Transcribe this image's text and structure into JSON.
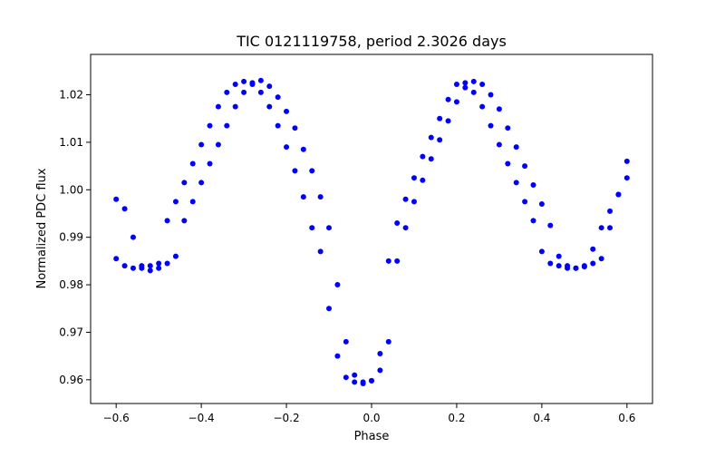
{
  "chart_data": {
    "type": "scatter",
    "title": "TIC 0121119758, period 2.3026 days",
    "xlabel": "Phase",
    "ylabel": "Normalized PDC flux",
    "xlim": [
      -0.66,
      0.66
    ],
    "ylim": [
      0.955,
      1.0285
    ],
    "xticks": [
      -0.6,
      -0.4,
      -0.2,
      0.0,
      0.2,
      0.4,
      0.6
    ],
    "xtick_labels": [
      "−0.6",
      "−0.4",
      "−0.2",
      "0.0",
      "0.2",
      "0.4",
      "0.6"
    ],
    "yticks": [
      0.96,
      0.97,
      0.98,
      0.99,
      1.0,
      1.01,
      1.02
    ],
    "ytick_labels": [
      "0.96",
      "0.97",
      "0.98",
      "0.99",
      "1.00",
      "1.01",
      "1.02"
    ],
    "grid": false,
    "marker_color": "#0000ff",
    "series": [
      {
        "x": [
          -0.6,
          -0.58,
          -0.56,
          -0.54,
          -0.52,
          -0.5,
          -0.48,
          -0.46,
          -0.44,
          -0.42,
          -0.4,
          -0.38,
          -0.36,
          -0.34,
          -0.32,
          -0.3,
          -0.28,
          -0.26,
          -0.24,
          -0.22,
          -0.2,
          -0.18,
          -0.16,
          -0.14,
          -0.12,
          -0.1,
          -0.08,
          -0.06,
          -0.04,
          -0.02,
          0.0,
          0.02,
          0.04,
          0.06,
          0.08,
          0.1,
          0.12,
          0.14,
          0.16,
          0.18,
          0.2,
          0.22,
          0.24,
          0.26,
          0.28,
          0.3,
          0.32,
          0.34,
          0.36,
          0.38,
          0.4,
          0.42,
          0.44,
          0.46,
          0.48,
          0.5,
          0.52,
          0.54,
          0.56,
          0.58,
          0.6
        ],
        "y": [
          0.9855,
          0.984,
          0.9835,
          0.9835,
          0.984,
          0.9845,
          0.9935,
          0.9975,
          1.0015,
          1.0055,
          1.0095,
          1.0135,
          1.0175,
          1.0205,
          1.0222,
          1.0228,
          1.0222,
          1.0205,
          1.0175,
          1.0135,
          1.009,
          1.004,
          0.9985,
          0.992,
          0.987,
          0.975,
          0.965,
          0.9605,
          0.9595,
          0.9592,
          0.9598,
          0.9655,
          0.985,
          0.993,
          0.998,
          1.0025,
          1.007,
          1.011,
          1.015,
          1.019,
          1.0222,
          1.0225,
          1.0205,
          1.0175,
          1.0135,
          1.0095,
          1.0055,
          1.0015,
          0.9975,
          0.9935,
          0.987,
          0.9845,
          0.984,
          0.9835,
          0.9835,
          0.984,
          0.9875,
          0.992,
          0.9955,
          0.999,
          1.0025
        ]
      },
      {
        "x": [
          -0.6,
          -0.58,
          -0.56,
          -0.54,
          -0.52,
          -0.5,
          -0.48,
          -0.46,
          -0.44,
          -0.42,
          -0.4,
          -0.38,
          -0.36,
          -0.34,
          -0.32,
          -0.3,
          -0.28,
          -0.26,
          -0.24,
          -0.22,
          -0.2,
          -0.18,
          -0.16,
          -0.14,
          -0.12,
          -0.1,
          -0.08,
          -0.06,
          -0.04,
          -0.02,
          0.0,
          0.02,
          0.04,
          0.06,
          0.08,
          0.1,
          0.12,
          0.14,
          0.16,
          0.18,
          0.2,
          0.22,
          0.24,
          0.26,
          0.28,
          0.3,
          0.32,
          0.34,
          0.36,
          0.38,
          0.4,
          0.42,
          0.44,
          0.46,
          0.48,
          0.5,
          0.52,
          0.54,
          0.56,
          0.58,
          0.6
        ],
        "y": [
          0.998,
          0.996,
          0.99,
          0.984,
          0.983,
          0.9835,
          0.9845,
          0.986,
          0.9935,
          0.9975,
          1.0015,
          1.0055,
          1.0095,
          1.0135,
          1.0175,
          1.0205,
          1.0225,
          1.023,
          1.0218,
          1.0195,
          1.0165,
          1.013,
          1.0085,
          1.004,
          0.9985,
          0.992,
          0.98,
          0.968,
          0.961,
          0.9595,
          0.9598,
          0.962,
          0.968,
          0.985,
          0.992,
          0.9975,
          1.002,
          1.0065,
          1.0105,
          1.0145,
          1.0185,
          1.0215,
          1.0228,
          1.0222,
          1.02,
          1.017,
          1.013,
          1.009,
          1.005,
          1.001,
          0.997,
          0.9925,
          0.986,
          0.984,
          0.9835,
          0.9838,
          0.9845,
          0.9855,
          0.992,
          0.999,
          1.006
        ]
      }
    ]
  }
}
